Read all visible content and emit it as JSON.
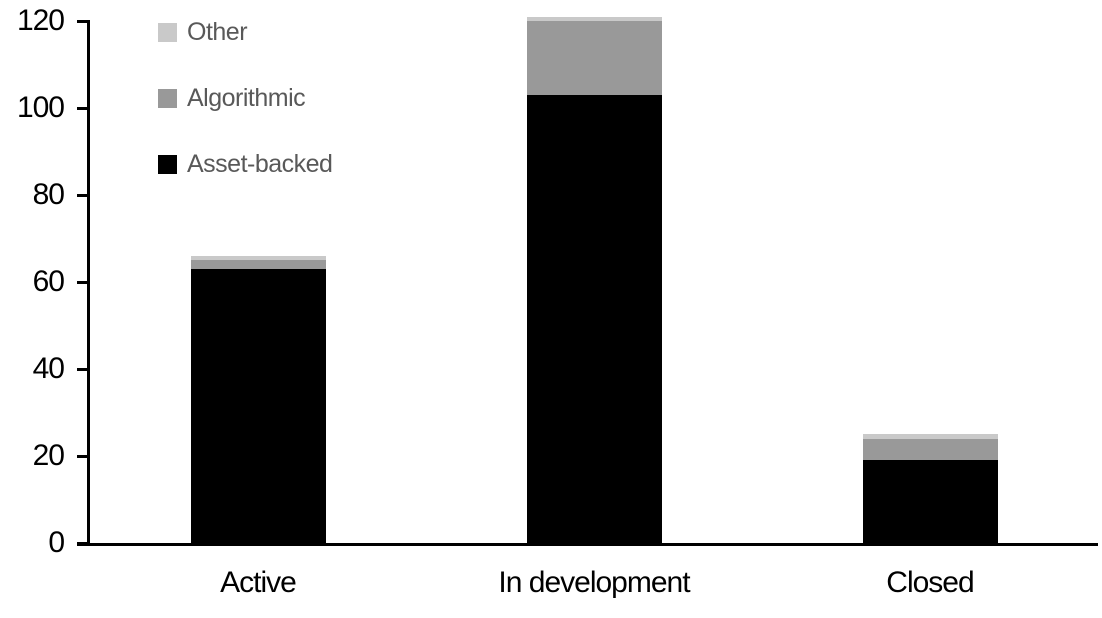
{
  "chart_data": {
    "type": "bar",
    "stacked": true,
    "title": "",
    "categories": [
      "Active",
      "In development",
      "Closed"
    ],
    "series": [
      {
        "name": "Other",
        "color": "#c9c9c9",
        "values": [
          1,
          1,
          1
        ]
      },
      {
        "name": "Algorithmic",
        "color": "#999999",
        "values": [
          2,
          17,
          5
        ]
      },
      {
        "name": "Asset-backed",
        "color": "#000000",
        "values": [
          63,
          103,
          19
        ]
      }
    ],
    "stack_totals": [
      66,
      121,
      25
    ],
    "xlabel": "",
    "ylabel": "",
    "ylim": [
      0,
      120
    ],
    "yticks": [
      0,
      20,
      40,
      60,
      80,
      100,
      120
    ],
    "grid": false,
    "legend_position": "top-left",
    "colors": {
      "axis": "#000000",
      "tick_label_text": "#000000",
      "legend_text": "#595959",
      "background": "#ffffff"
    }
  }
}
